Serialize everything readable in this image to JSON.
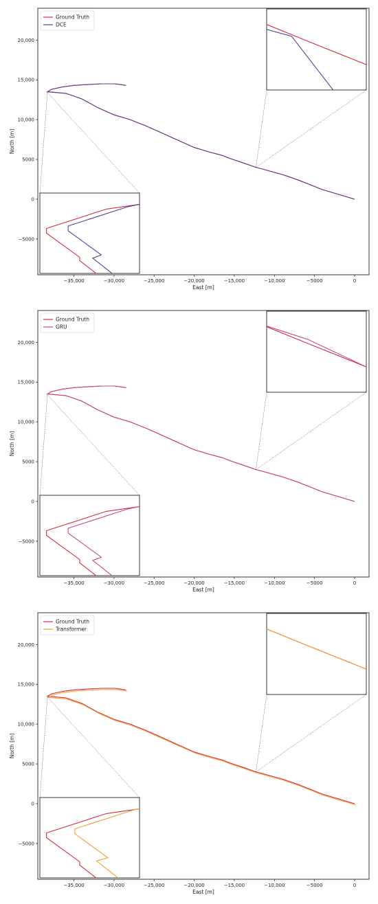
{
  "colors": {
    "ground_truth": "#d62b3c",
    "dce": "#5b3a95",
    "gru": "#c24b8a",
    "transformer": "#f0a030"
  },
  "chart_data": [
    {
      "type": "line",
      "xlabel": "East [m]",
      "ylabel": "North [m]",
      "xlim": [
        -39500,
        1800
      ],
      "ylim": [
        -9500,
        24000
      ],
      "x_ticks": [
        -35000,
        -30000,
        -25000,
        -20000,
        -15000,
        -10000,
        -5000,
        0
      ],
      "x_tick_labels": [
        "−35,000",
        "−30,000",
        "−25,000",
        "−20,000",
        "−15,000",
        "−10,000",
        "−5000",
        "0"
      ],
      "y_ticks": [
        -5000,
        0,
        5000,
        10000,
        15000,
        20000
      ],
      "y_tick_labels": [
        "−5000",
        "0",
        "5000",
        "10,000",
        "15,000",
        "20,000"
      ],
      "legend_position": "top-left",
      "series": [
        {
          "name": "Ground Truth",
          "color": "#d62b3c"
        },
        {
          "name": "DCE",
          "color": "#5b3a95"
        }
      ],
      "inset_left": {
        "xlim": [
          -38600,
          -38000
        ],
        "ylim": [
          13100,
          13600
        ],
        "predicted_offset": [
          130,
          15
        ]
      },
      "inset_right": {
        "xlim": [
          -12500,
          -11300
        ],
        "ylim": [
          3400,
          4200
        ],
        "predicted_offset": [
          -20,
          -60
        ]
      }
    },
    {
      "type": "line",
      "xlabel": "East [m]",
      "ylabel": "North [m]",
      "xlim": [
        -39500,
        1800
      ],
      "ylim": [
        -9500,
        24000
      ],
      "x_ticks": [
        -35000,
        -30000,
        -25000,
        -20000,
        -15000,
        -10000,
        -5000,
        0
      ],
      "x_tick_labels": [
        "−35,000",
        "−30,000",
        "−25,000",
        "−20,000",
        "−15,000",
        "−10,000",
        "−5000",
        "0"
      ],
      "y_ticks": [
        -5000,
        0,
        5000,
        10000,
        15000,
        20000
      ],
      "y_tick_labels": [
        "−5000",
        "0",
        "5000",
        "10,000",
        "15,000",
        "20,000"
      ],
      "legend_position": "top-left",
      "series": [
        {
          "name": "Ground Truth",
          "color": "#d62b3c"
        },
        {
          "name": "GRU",
          "color": "#c24b8a"
        }
      ],
      "inset_left": {
        "xlim": [
          -38600,
          -38000
        ],
        "ylim": [
          13100,
          13600
        ],
        "predicted_offset": [
          130,
          15
        ]
      },
      "inset_right": {
        "xlim": [
          -12500,
          -11300
        ],
        "ylim": [
          3400,
          4200
        ],
        "predicted_offset": [
          0,
          25
        ]
      }
    },
    {
      "type": "line",
      "xlabel": "East [m]",
      "ylabel": "North [m]",
      "xlim": [
        -39500,
        1800
      ],
      "ylim": [
        -9500,
        24000
      ],
      "x_ticks": [
        -35000,
        -30000,
        -25000,
        -20000,
        -15000,
        -10000,
        -5000,
        0
      ],
      "x_tick_labels": [
        "−35,000",
        "−30,000",
        "−25,000",
        "−20,000",
        "−15,000",
        "−10,000",
        "−5000",
        "0"
      ],
      "y_ticks": [
        -5000,
        0,
        5000,
        10000,
        15000,
        20000
      ],
      "y_tick_labels": [
        "−5000",
        "0",
        "5000",
        "10,000",
        "15,000",
        "20,000"
      ],
      "legend_position": "top-left",
      "series": [
        {
          "name": "Ground Truth",
          "color": "#d62b3c"
        },
        {
          "name": "Transformer",
          "color": "#f0a030"
        }
      ],
      "inset_left": {
        "xlim": [
          -38600,
          -38000
        ],
        "ylim": [
          13100,
          13600
        ],
        "predicted_offset": [
          170,
          25
        ]
      },
      "inset_right": {
        "xlim": [
          -12500,
          -11300
        ],
        "ylim": [
          3400,
          4200
        ],
        "predicted_offset": [
          0,
          0
        ]
      }
    }
  ],
  "trajectory_ground_truth": {
    "x": [
      0,
      -2000,
      -4000,
      -5500,
      -7000,
      -9000,
      -10500,
      -11500,
      -12300,
      -14000,
      -15500,
      -16500,
      -18000,
      -20000,
      -22000,
      -24000,
      -26000,
      -28000,
      -30000,
      -32000,
      -34000,
      -36000,
      -38300,
      -37800,
      -36500,
      -35000,
      -33500,
      -31500,
      -30000,
      -29500,
      -28500
    ],
    "y": [
      0,
      600,
      1200,
      1800,
      2400,
      3100,
      3500,
      3800,
      4000,
      4600,
      5100,
      5500,
      5900,
      6500,
      7400,
      8300,
      9200,
      10000,
      10600,
      11500,
      12600,
      13300,
      13500,
      13800,
      14100,
      14300,
      14400,
      14500,
      14500,
      14450,
      14300
    ]
  }
}
